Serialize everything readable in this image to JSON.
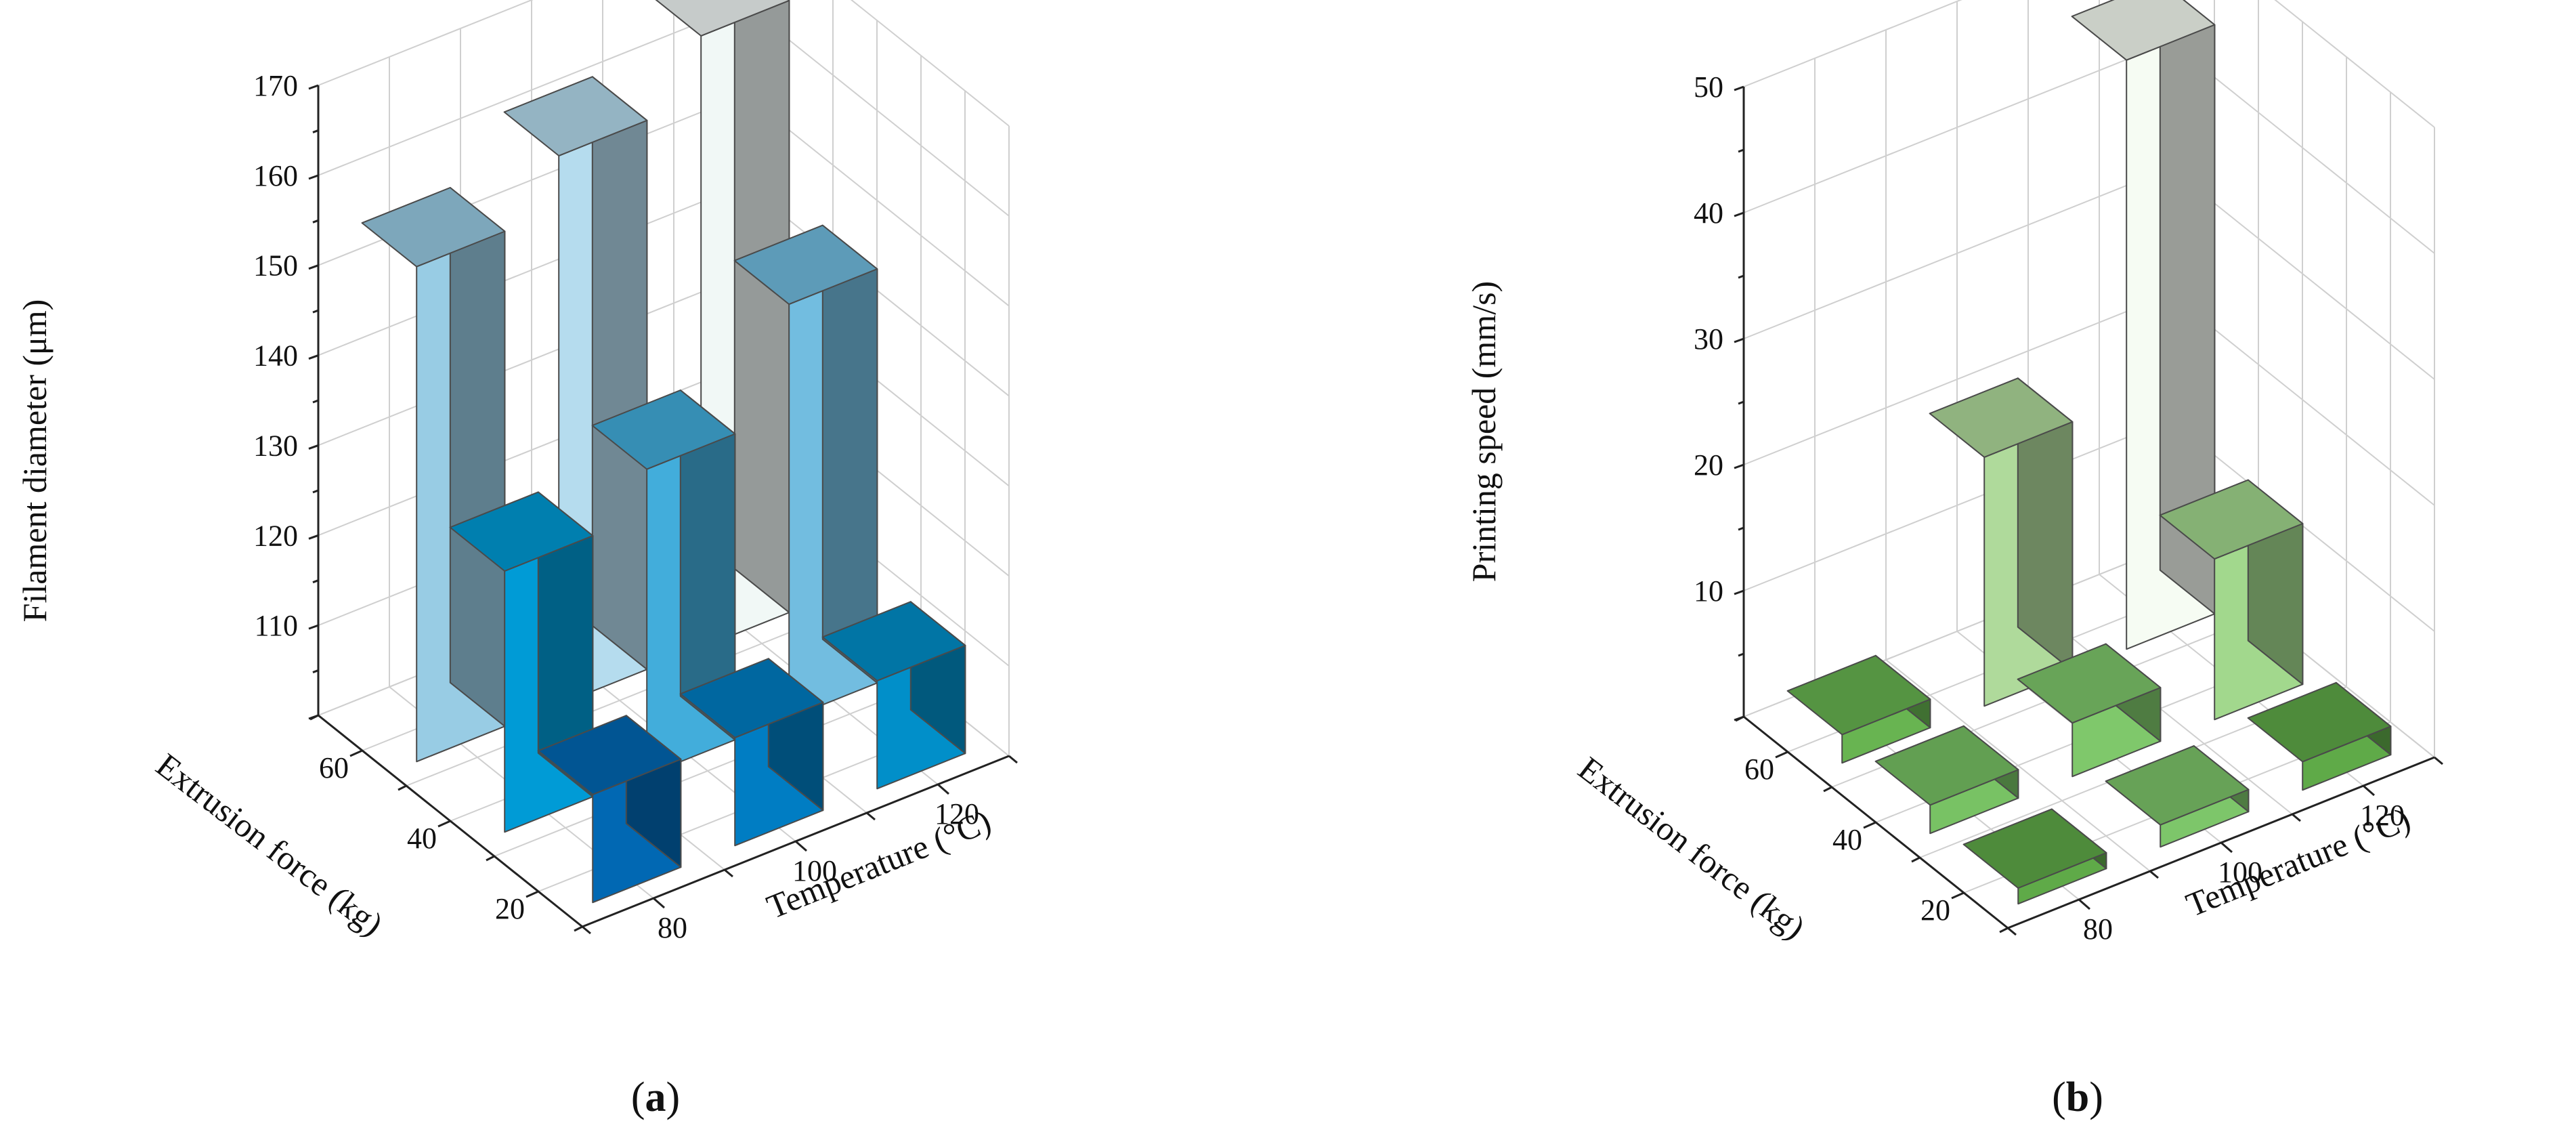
{
  "chart_data": [
    {
      "panel": "a",
      "type": "bar3d",
      "caption": "(a)",
      "zlabel": "Filament diameter (μm)",
      "xlabel": "Temperature (°C)",
      "ylabel": "Extrusion force (kg)",
      "x_ticks": [
        "80",
        "100",
        "120"
      ],
      "y_ticks": [
        "20",
        "40",
        "60"
      ],
      "z_ticks": [
        "110",
        "120",
        "130",
        "140",
        "150",
        "160",
        "170"
      ],
      "zlim": [
        100,
        170
      ],
      "grid": true,
      "bars": [
        {
          "temperature": 80,
          "force": 60,
          "value": 155,
          "color": "#98CCE4"
        },
        {
          "temperature": 100,
          "force": 60,
          "value": 161,
          "color": "#B5DCEE"
        },
        {
          "temperature": 120,
          "force": 60,
          "value": 168,
          "color": "#F1F8F6"
        },
        {
          "temperature": 80,
          "force": 40,
          "value": 129,
          "color": "#009BD6"
        },
        {
          "temperature": 100,
          "force": 40,
          "value": 134,
          "color": "#42ADDB"
        },
        {
          "temperature": 120,
          "force": 40,
          "value": 146,
          "color": "#72BDE0"
        },
        {
          "temperature": 80,
          "force": 20,
          "value": 112,
          "color": "#0168B3"
        },
        {
          "temperature": 100,
          "force": 20,
          "value": 112,
          "color": "#007DC3"
        },
        {
          "temperature": 120,
          "force": 20,
          "value": 112,
          "color": "#018FC9"
        }
      ]
    },
    {
      "panel": "b",
      "type": "bar3d",
      "caption": "(b)",
      "zlabel": "Printing speed (mm/s)",
      "xlabel": "Temperature (°C)",
      "ylabel": "Extrusion force (kg)",
      "x_ticks": [
        "80",
        "100",
        "120"
      ],
      "y_ticks": [
        "20",
        "40",
        "60"
      ],
      "z_ticks": [
        "10",
        "20",
        "30",
        "40",
        "50"
      ],
      "zlim": [
        0,
        50
      ],
      "grid": true,
      "bars": [
        {
          "temperature": 80,
          "force": 60,
          "value": 1.5,
          "color": "#68B451"
        },
        {
          "temperature": 100,
          "force": 60,
          "value": 19,
          "color": "#AFDA9B"
        },
        {
          "temperature": 120,
          "force": 60,
          "value": 46,
          "color": "#F6FCF3"
        },
        {
          "temperature": 80,
          "force": 40,
          "value": 1.5,
          "color": "#78C264"
        },
        {
          "temperature": 100,
          "force": 40,
          "value": 3.5,
          "color": "#7FC86B"
        },
        {
          "temperature": 120,
          "force": 40,
          "value": 12,
          "color": "#A2D88D"
        },
        {
          "temperature": 80,
          "force": 20,
          "value": 0.5,
          "color": "#5FAA48"
        },
        {
          "temperature": 100,
          "force": 20,
          "value": 1,
          "color": "#7DC66A"
        },
        {
          "temperature": 120,
          "force": 20,
          "value": 1.5,
          "color": "#5FAA48"
        }
      ]
    }
  ]
}
